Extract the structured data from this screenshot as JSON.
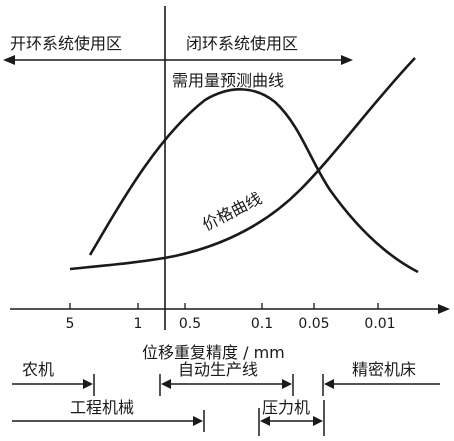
{
  "regions": {
    "open_loop": "开环系统使用区",
    "closed_loop": "闭环系统使用区"
  },
  "curves": {
    "demand": "需用量预测曲线",
    "price": "价格曲线"
  },
  "axis": {
    "title": "位移重复精度 / mm",
    "ticks": [
      "5",
      "1",
      "0.5",
      "0.1",
      "0.05",
      "0.01"
    ]
  },
  "applications": {
    "farm_machinery": "农机",
    "engineering_machinery": "工程机械",
    "automation_line": "自动生产线",
    "press": "压力机",
    "precision_machine_tool": "精密机床"
  }
}
